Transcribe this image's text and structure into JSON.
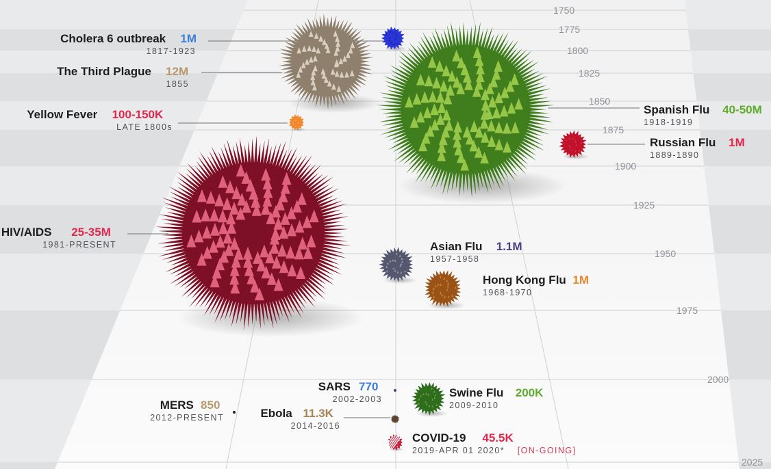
{
  "chart_data": {
    "type": "scatter",
    "axis": {
      "label": "",
      "min": 1750,
      "max": 2025,
      "ticks": [
        1750,
        1775,
        1800,
        1825,
        1850,
        1875,
        1900,
        1925,
        1950,
        1975,
        2000,
        2025
      ]
    },
    "colors": {
      "blue": "#3c7ed6",
      "tan": "#b89a6e",
      "red": "#e0284e",
      "green": "#5fac2c",
      "purple": "#4a3f86",
      "orange": "#e8862b",
      "brown": "#a58454"
    },
    "points": [
      {
        "key": "cholera",
        "name": "Cholera 6 outbreak",
        "deaths_label": "1M",
        "deaths": 1000000,
        "period": "1817-1923",
        "start_year": 1817,
        "color": "blue",
        "ball": "#2a35d6",
        "spike": "#0c0f80"
      },
      {
        "key": "plague",
        "name": "The Third Plague",
        "deaths_label": "12M",
        "deaths": 12000000,
        "period": "1855",
        "start_year": 1855,
        "color": "tan",
        "ball": "#8f7f6d",
        "spike": "#e6ddd0"
      },
      {
        "key": "yellow",
        "name": "Yellow Fever",
        "deaths_label": "100-150K",
        "deaths": 125000,
        "period": "LATE 1800s",
        "start_year": 1880,
        "color": "red",
        "ball": "#f2882e",
        "spike": "#ffb066"
      },
      {
        "key": "spanish",
        "name": "Spanish Flu",
        "deaths_label": "40-50M",
        "deaths": 45000000,
        "period": "1918-1919",
        "start_year": 1918,
        "color": "green",
        "ball": "#3f7d1d",
        "spike": "#a6d24f"
      },
      {
        "key": "russian",
        "name": "Russian Flu",
        "deaths_label": "1M",
        "deaths": 1000000,
        "period": "1889-1890",
        "start_year": 1889,
        "color": "red",
        "ball": "#c0122a",
        "spike": "#e84257"
      },
      {
        "key": "hiv",
        "name": "HIV/AIDS",
        "deaths_label": "25-35M",
        "deaths": 30000000,
        "period": "1981-PRESENT",
        "start_year": 1981,
        "color": "red",
        "ball": "#7d1026",
        "spike": "#f0708c"
      },
      {
        "key": "asian",
        "name": "Asian Flu",
        "deaths_label": "1.1M",
        "deaths": 1100000,
        "period": "1957-1958",
        "start_year": 1957,
        "color": "purple",
        "ball": "#55576f",
        "spike": "#a8aac0"
      },
      {
        "key": "hongkong",
        "name": "Hong Kong Flu",
        "deaths_label": "1M",
        "deaths": 1000000,
        "period": "1968-1970",
        "start_year": 1968,
        "color": "orange",
        "ball": "#9a5316",
        "spike": "#d98b3c"
      },
      {
        "key": "sars",
        "name": "SARS",
        "deaths_label": "770",
        "deaths": 770,
        "period": "2002-2003",
        "start_year": 2002,
        "color": "blue",
        "ball": "#2a4f8a",
        "spike": "#2a4f8a"
      },
      {
        "key": "swine",
        "name": "Swine Flu",
        "deaths_label": "200K",
        "deaths": 200000,
        "period": "2009-2010",
        "start_year": 2009,
        "color": "green",
        "ball": "#2f6d1e",
        "spike": "#78b648"
      },
      {
        "key": "mers",
        "name": "MERS",
        "deaths_label": "850",
        "deaths": 850,
        "period": "2012-PRESENT",
        "start_year": 2012,
        "color": "tan",
        "ball": "#222222",
        "spike": "#222222"
      },
      {
        "key": "ebola",
        "name": "Ebola",
        "deaths_label": "11.3K",
        "deaths": 11300,
        "period": "2014-2016",
        "start_year": 2014,
        "color": "brown",
        "ball": "#5a4632",
        "spike": "#5a4632"
      },
      {
        "key": "covid",
        "name": "COVID-19",
        "deaths_label": "45.5K",
        "deaths": 45500,
        "period": "2019-APR 01 2020*",
        "start_year": 2019,
        "color": "red",
        "ball": "#c8243e",
        "spike": "#ffffff",
        "note": "[ON-GOING]"
      }
    ]
  }
}
